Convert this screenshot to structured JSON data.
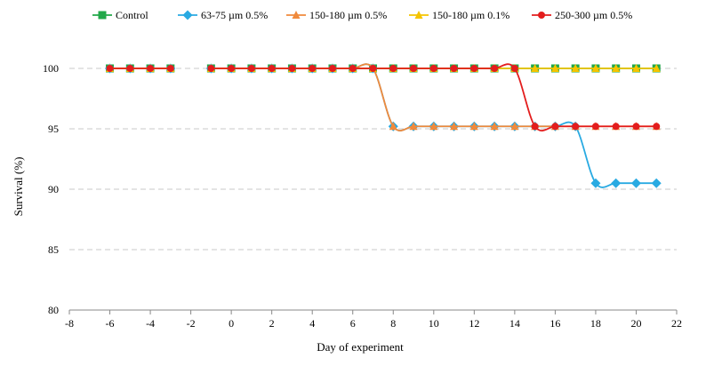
{
  "chart_data": {
    "type": "line",
    "title": "",
    "xlabel": "Day of experiment",
    "ylabel": "Survival (%)",
    "xlim": [
      -8,
      22
    ],
    "ylim": [
      80,
      100
    ],
    "x_ticks": [
      "-8",
      "-6",
      "-4",
      "-2",
      "0",
      "2",
      "4",
      "6",
      "8",
      "10",
      "12",
      "14",
      "16",
      "18",
      "20",
      "22"
    ],
    "y_ticks": [
      "80",
      "85",
      "90",
      "95",
      "100"
    ],
    "grid": "horizontal dashed",
    "legend_position": "top",
    "x": [
      -6,
      -5,
      -4,
      -3,
      -1,
      0,
      1,
      2,
      3,
      4,
      5,
      6,
      7,
      8,
      9,
      10,
      11,
      12,
      13,
      14,
      15,
      16,
      17,
      18,
      19,
      20,
      21
    ],
    "series": [
      {
        "name": "Control",
        "color": "#22a84a",
        "marker": "square",
        "values": [
          100,
          100,
          100,
          100,
          100,
          100,
          100,
          100,
          100,
          100,
          100,
          100,
          100,
          100,
          100,
          100,
          100,
          100,
          100,
          100,
          100,
          100,
          100,
          100,
          100,
          100,
          100
        ]
      },
      {
        "name": "63-75 µm 0.5%",
        "color": "#29aae2",
        "marker": "diamond",
        "values": [
          100,
          100,
          100,
          100,
          100,
          100,
          100,
          100,
          100,
          100,
          100,
          100,
          100,
          95.2,
          95.2,
          95.2,
          95.2,
          95.2,
          95.2,
          95.2,
          95.2,
          95.2,
          95.2,
          90.5,
          90.5,
          90.5,
          90.5
        ]
      },
      {
        "name": "150-180 µm 0.5%",
        "color": "#f08a3c",
        "marker": "triangle",
        "values": [
          100,
          100,
          100,
          100,
          100,
          100,
          100,
          100,
          100,
          100,
          100,
          100,
          100,
          95.2,
          95.2,
          95.2,
          95.2,
          95.2,
          95.2,
          95.2,
          95.2,
          95.2,
          95.2,
          95.2,
          95.2,
          95.2,
          95.2
        ]
      },
      {
        "name": "150-180 µm 0.1%",
        "color": "#f5c400",
        "marker": "triangle",
        "values": [
          100,
          100,
          100,
          100,
          100,
          100,
          100,
          100,
          100,
          100,
          100,
          100,
          100,
          100,
          100,
          100,
          100,
          100,
          100,
          100,
          100,
          100,
          100,
          100,
          100,
          100,
          100
        ]
      },
      {
        "name": "250-300 µm 0.5%",
        "color": "#e31d1d",
        "marker": "circle",
        "values": [
          100,
          100,
          100,
          100,
          100,
          100,
          100,
          100,
          100,
          100,
          100,
          100,
          100,
          100,
          100,
          100,
          100,
          100,
          100,
          100,
          95.2,
          95.2,
          95.2,
          95.2,
          95.2,
          95.2,
          95.2
        ]
      }
    ]
  }
}
